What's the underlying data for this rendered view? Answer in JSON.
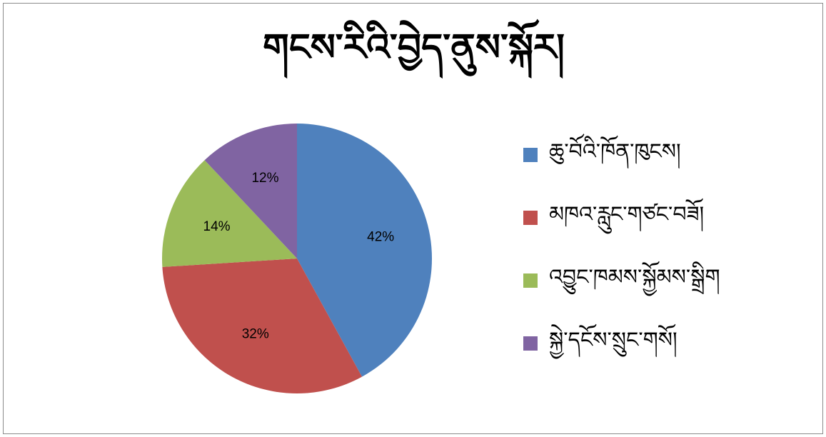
{
  "chart_data": {
    "type": "pie",
    "title": "གངས་རིའི་བྱེད་ནུས་སྐོར།",
    "categories": [
      "ཆུ་བོའི་ཁོན་ཁུངས།",
      "མཁའ་རླུང་གཙང་བཟོ།",
      "འབྱུང་ཁམས་སྐྱོམས་སྒྲིག",
      "སྐྱེ་དངོས་སྲུང་གསོ།"
    ],
    "values": [
      42,
      32,
      14,
      12
    ],
    "labels": [
      "42%",
      "32%",
      "14%",
      "12%"
    ],
    "colors": [
      "#4f81bd",
      "#c0504d",
      "#9bbb59",
      "#8064a2"
    ],
    "legend_position": "right"
  }
}
